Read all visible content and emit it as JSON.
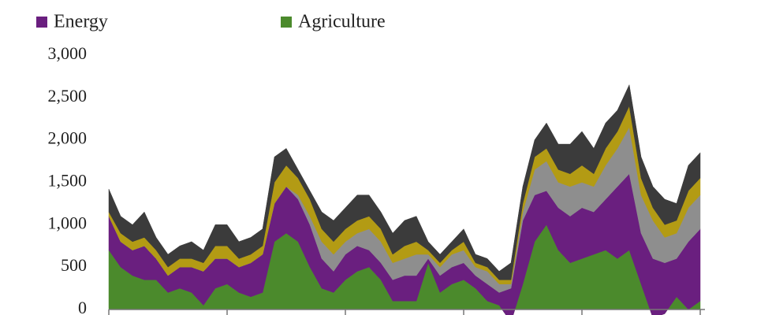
{
  "chart_data": {
    "type": "stacked_area",
    "categories": [
      null,
      null,
      null,
      null,
      null,
      null,
      null,
      null,
      null,
      null,
      null,
      null,
      null,
      null,
      null,
      null,
      null,
      null,
      null,
      null,
      null,
      null,
      null,
      null,
      null,
      null,
      null,
      null,
      null,
      null,
      null,
      null,
      null,
      null,
      null,
      null,
      null,
      null,
      null,
      null,
      null,
      null,
      null,
      null,
      null,
      null,
      null,
      null,
      null,
      null,
      null
    ],
    "series": [
      {
        "name": "Agriculture",
        "color": "#4b8a2c",
        "values": [
          700,
          500,
          400,
          350,
          350,
          200,
          250,
          200,
          50,
          250,
          300,
          200,
          150,
          200,
          800,
          900,
          800,
          500,
          250,
          200,
          350,
          450,
          500,
          350,
          100,
          100,
          100,
          550,
          200,
          300,
          350,
          250,
          100,
          50,
          -150,
          300,
          800,
          1000,
          700,
          550,
          600,
          650,
          700,
          600,
          700,
          300,
          -100,
          -50,
          150,
          0,
          100
        ]
      },
      {
        "name": "Energy",
        "color": "#6a1f7f",
        "values": [
          400,
          300,
          300,
          400,
          250,
          200,
          250,
          300,
          400,
          350,
          300,
          300,
          400,
          450,
          450,
          550,
          500,
          500,
          350,
          250,
          300,
          300,
          200,
          200,
          250,
          300,
          300,
          50,
          200,
          200,
          200,
          150,
          200,
          150,
          400,
          750,
          550,
          400,
          500,
          550,
          600,
          500,
          600,
          850,
          900,
          600,
          700,
          600,
          450,
          800,
          850
        ]
      },
      {
        "color": "#8e8e8e",
        "values": [
          0,
          0,
          0,
          0,
          0,
          0,
          0,
          0,
          0,
          0,
          0,
          0,
          0,
          0,
          0,
          0,
          50,
          100,
          200,
          200,
          150,
          150,
          250,
          250,
          200,
          200,
          250,
          50,
          100,
          150,
          150,
          100,
          150,
          100,
          50,
          100,
          300,
          350,
          300,
          350,
          300,
          300,
          400,
          450,
          550,
          450,
          450,
          300,
          300,
          400,
          400
        ]
      },
      {
        "color": "#b39b14",
        "values": [
          50,
          100,
          100,
          100,
          100,
          100,
          100,
          100,
          100,
          150,
          150,
          100,
          100,
          100,
          250,
          250,
          200,
          200,
          150,
          150,
          150,
          150,
          150,
          150,
          100,
          150,
          150,
          50,
          50,
          50,
          100,
          50,
          50,
          50,
          50,
          100,
          150,
          150,
          150,
          150,
          200,
          150,
          200,
          200,
          250,
          200,
          150,
          150,
          150,
          200,
          200
        ]
      },
      {
        "color": "#3b3b3b",
        "values": [
          270,
          200,
          200,
          300,
          150,
          150,
          150,
          200,
          150,
          250,
          250,
          200,
          200,
          200,
          300,
          200,
          100,
          100,
          200,
          250,
          250,
          300,
          250,
          200,
          250,
          300,
          300,
          100,
          100,
          100,
          150,
          100,
          100,
          100,
          200,
          200,
          200,
          300,
          300,
          350,
          400,
          300,
          300,
          250,
          250,
          250,
          250,
          300,
          200,
          300,
          300
        ]
      }
    ],
    "ylim": [
      0,
      3000
    ],
    "yticks": [
      0,
      500,
      {
        "value": 1000,
        "label": "1,000"
      },
      {
        "value": 1500,
        "label": "1,500"
      },
      {
        "value": 2000,
        "label": "2,000"
      },
      {
        "value": 2500,
        "label": "2,500"
      },
      {
        "value": 3000,
        "label": "3,000"
      }
    ]
  }
}
